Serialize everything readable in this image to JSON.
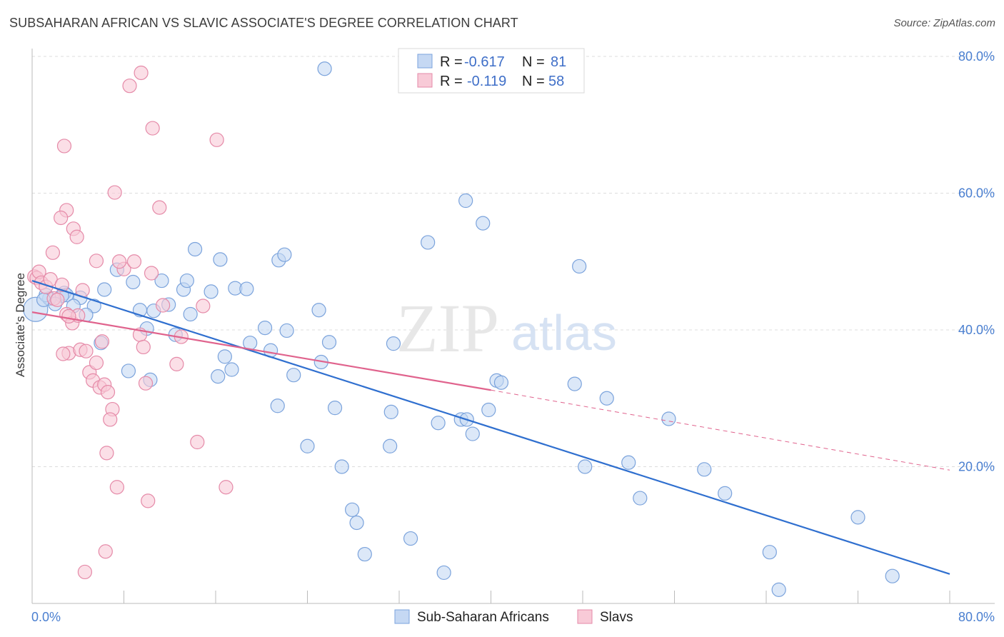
{
  "title": "SUBSAHARAN AFRICAN VS SLAVIC ASSOCIATE'S DEGREE CORRELATION CHART",
  "source": "Source: ZipAtlas.com",
  "watermark": {
    "zip": "ZIP",
    "atlas": "atlas"
  },
  "legend": {
    "r_label": "R =",
    "n_label": "N =",
    "rows": [
      {
        "r": "-0.617",
        "n": "81"
      },
      {
        "r": "-0.119",
        "n": "58"
      }
    ]
  },
  "colors": {
    "blue_fill": "#c5d8f3",
    "blue_stroke": "#7ba3dc",
    "blue_line": "#2f6fcf",
    "pink_fill": "#f8cad7",
    "pink_stroke": "#e58aa8",
    "pink_line": "#e0638d",
    "grid": "#dddddd",
    "tick_text": "#4a7fd0"
  },
  "chart_data": {
    "type": "scatter",
    "xlabel": "",
    "ylabel": "Associate's Degree",
    "xlim": [
      0,
      80
    ],
    "ylim": [
      0,
      80
    ],
    "x_ticks": [
      "0.0%",
      "80.0%"
    ],
    "y_ticks": [
      "20.0%",
      "40.0%",
      "60.0%",
      "80.0%"
    ],
    "y_tick_values": [
      20,
      40,
      60,
      80
    ],
    "grid": true,
    "legend_position": "top-center",
    "series": [
      {
        "name": "Sub-Saharan Africans",
        "color": "#7ba3dc",
        "points": [
          [
            0.3,
            43.0
          ],
          [
            1.5,
            44.6
          ],
          [
            1.2,
            45.1
          ],
          [
            2.8,
            45.4
          ],
          [
            3.0,
            45.1
          ],
          [
            4.2,
            44.7
          ],
          [
            3.6,
            43.5
          ],
          [
            5.4,
            43.5
          ],
          [
            4.7,
            42.2
          ],
          [
            6.3,
            45.9
          ],
          [
            7.4,
            48.8
          ],
          [
            8.8,
            47.0
          ],
          [
            9.4,
            42.9
          ],
          [
            10.0,
            40.2
          ],
          [
            10.6,
            42.8
          ],
          [
            11.9,
            43.7
          ],
          [
            11.3,
            47.2
          ],
          [
            13.2,
            45.9
          ],
          [
            13.8,
            42.3
          ],
          [
            12.5,
            39.3
          ],
          [
            14.2,
            51.8
          ],
          [
            15.6,
            45.6
          ],
          [
            16.4,
            50.3
          ],
          [
            16.8,
            36.1
          ],
          [
            17.4,
            34.2
          ],
          [
            16.2,
            33.2
          ],
          [
            17.7,
            46.1
          ],
          [
            19.0,
            38.1
          ],
          [
            18.7,
            46.0
          ],
          [
            20.3,
            40.3
          ],
          [
            20.8,
            37.0
          ],
          [
            21.4,
            28.9
          ],
          [
            22.2,
            39.9
          ],
          [
            21.5,
            50.2
          ],
          [
            22.0,
            51.0
          ],
          [
            22.8,
            33.4
          ],
          [
            24.0,
            23.0
          ],
          [
            25.0,
            42.9
          ],
          [
            25.2,
            35.3
          ],
          [
            25.9,
            38.2
          ],
          [
            26.4,
            28.6
          ],
          [
            27.0,
            20.0
          ],
          [
            27.9,
            13.7
          ],
          [
            28.3,
            11.8
          ],
          [
            29.0,
            7.2
          ],
          [
            31.2,
            23.0
          ],
          [
            31.3,
            28.0
          ],
          [
            33.0,
            9.5
          ],
          [
            31.5,
            38.0
          ],
          [
            34.5,
            52.8
          ],
          [
            35.4,
            26.4
          ],
          [
            35.9,
            4.5
          ],
          [
            37.4,
            26.9
          ],
          [
            37.9,
            26.9
          ],
          [
            38.4,
            24.8
          ],
          [
            39.3,
            55.6
          ],
          [
            39.8,
            28.3
          ],
          [
            37.8,
            58.9
          ],
          [
            40.5,
            32.6
          ],
          [
            40.9,
            32.3
          ],
          [
            47.3,
            32.1
          ],
          [
            48.2,
            20.0
          ],
          [
            47.7,
            49.3
          ],
          [
            50.1,
            30.0
          ],
          [
            52.0,
            20.6
          ],
          [
            53.0,
            15.4
          ],
          [
            55.5,
            27.0
          ],
          [
            58.6,
            19.6
          ],
          [
            60.4,
            16.1
          ],
          [
            64.3,
            7.5
          ],
          [
            65.1,
            2.0
          ],
          [
            72.0,
            12.6
          ],
          [
            75.0,
            4.0
          ],
          [
            25.5,
            78.2
          ],
          [
            6.0,
            38.1
          ],
          [
            8.4,
            34.0
          ],
          [
            10.3,
            32.7
          ],
          [
            13.5,
            47.2
          ],
          [
            2.6,
            45.0
          ],
          [
            1.0,
            44.4
          ],
          [
            2.0,
            43.8
          ]
        ]
      },
      {
        "name": "Slavs",
        "color": "#e58aa8",
        "points": [
          [
            0.2,
            47.8
          ],
          [
            0.4,
            47.6
          ],
          [
            0.6,
            48.5
          ],
          [
            0.8,
            46.9
          ],
          [
            1.2,
            46.3
          ],
          [
            1.6,
            47.4
          ],
          [
            1.9,
            44.6
          ],
          [
            2.2,
            44.4
          ],
          [
            2.6,
            46.6
          ],
          [
            3.0,
            42.3
          ],
          [
            3.5,
            41.0
          ],
          [
            3.2,
            36.6
          ],
          [
            4.0,
            42.1
          ],
          [
            4.4,
            45.8
          ],
          [
            4.2,
            37.1
          ],
          [
            4.7,
            36.9
          ],
          [
            5.0,
            33.8
          ],
          [
            5.3,
            32.6
          ],
          [
            5.6,
            35.2
          ],
          [
            5.9,
            31.6
          ],
          [
            6.3,
            32.0
          ],
          [
            6.6,
            30.9
          ],
          [
            6.1,
            38.3
          ],
          [
            7.0,
            28.4
          ],
          [
            6.8,
            26.9
          ],
          [
            6.5,
            22.0
          ],
          [
            7.4,
            17.0
          ],
          [
            8.0,
            48.9
          ],
          [
            7.6,
            50.0
          ],
          [
            8.9,
            50.0
          ],
          [
            9.4,
            39.3
          ],
          [
            9.7,
            37.5
          ],
          [
            9.9,
            32.2
          ],
          [
            10.4,
            48.3
          ],
          [
            11.1,
            57.9
          ],
          [
            10.1,
            15.0
          ],
          [
            11.4,
            43.6
          ],
          [
            12.6,
            35.0
          ],
          [
            13.0,
            39.0
          ],
          [
            14.4,
            23.6
          ],
          [
            14.9,
            43.5
          ],
          [
            16.1,
            67.8
          ],
          [
            16.9,
            17.0
          ],
          [
            7.2,
            60.1
          ],
          [
            6.4,
            7.6
          ],
          [
            4.6,
            4.6
          ],
          [
            2.8,
            66.9
          ],
          [
            3.0,
            57.5
          ],
          [
            3.6,
            54.8
          ],
          [
            3.9,
            53.6
          ],
          [
            2.5,
            56.4
          ],
          [
            1.8,
            51.3
          ],
          [
            10.5,
            69.5
          ],
          [
            9.5,
            77.6
          ],
          [
            8.5,
            75.7
          ],
          [
            5.6,
            50.1
          ],
          [
            3.2,
            42.0
          ],
          [
            2.7,
            36.5
          ]
        ]
      }
    ],
    "trend_lines": [
      {
        "series": "Sub-Saharan Africans",
        "x": [
          0,
          80
        ],
        "y": [
          47.2,
          4.3
        ],
        "style": "solid"
      },
      {
        "series": "Slavs",
        "x": [
          0,
          40
        ],
        "y": [
          42.6,
          31.2
        ],
        "style": "solid"
      },
      {
        "series": "Slavs",
        "x": [
          40,
          80
        ],
        "y": [
          31.2,
          19.5
        ],
        "style": "dashed"
      }
    ]
  },
  "bottom_legend": [
    {
      "label": "Sub-Saharan Africans"
    },
    {
      "label": "Slavs"
    }
  ]
}
